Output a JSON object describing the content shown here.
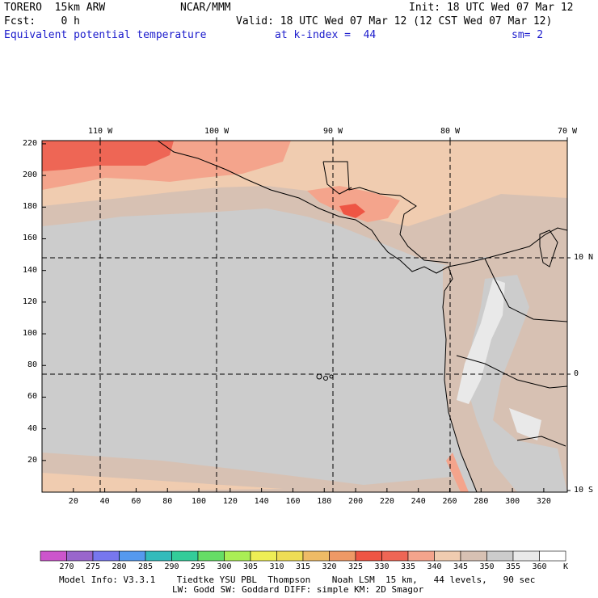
{
  "header": {
    "model": "TORERO  15km ARW",
    "center": "NCAR/MMM",
    "init": "Init: 18 UTC Wed 07 Mar 12",
    "fcst": "Fcst:    0 h",
    "valid": "Valid: 18 UTC Wed 07 Mar 12 (12 CST Wed 07 Mar 12)",
    "field": "Equivalent potential temperature",
    "level": "at k-index =  44",
    "smooth": "sm= 2"
  },
  "map": {
    "top_lon_labels": [
      "110 W",
      "100 W",
      "90 W",
      "80 W",
      "70 W"
    ],
    "right_lat_labels": [
      "10 N",
      "0",
      "10 S"
    ],
    "y_grid_labels": [
      "220",
      "200",
      "180",
      "160",
      "140",
      "120",
      "100",
      "80",
      "60",
      "40",
      "20"
    ],
    "x_grid_labels": [
      "20",
      "40",
      "60",
      "80",
      "100",
      "120",
      "140",
      "160",
      "180",
      "200",
      "220",
      "240",
      "260",
      "280",
      "300",
      "320"
    ],
    "x_range": [
      0,
      335
    ],
    "y_range": [
      0,
      222
    ]
  },
  "colorbar": {
    "unit": "K",
    "labels": [
      "270",
      "275",
      "280",
      "285",
      "290",
      "295",
      "300",
      "305",
      "310",
      "315",
      "320",
      "325",
      "330",
      "335",
      "340",
      "345",
      "350",
      "355",
      "360"
    ],
    "colors": [
      "#cc55cc",
      "#9966cc",
      "#7777ee",
      "#5599ee",
      "#33bbbb",
      "#33cc99",
      "#66dd66",
      "#aaee55",
      "#eeee55",
      "#eedd55",
      "#eebb66",
      "#ee9966",
      "#ee5544",
      "#ee6655",
      "#f4a48c",
      "#f0ccb0",
      "#d7c1b3",
      "#cccccc",
      "#e9e9e9",
      "#ffffff"
    ]
  },
  "footer": {
    "line1": "Model Info: V3.3.1    Tiedtke YSU PBL  Thompson    Noah LSM  15 km,   44 levels,   90 sec",
    "line2": "LW: Godd SW: Goddard DIFF: simple KM: 2D Smagor"
  }
}
